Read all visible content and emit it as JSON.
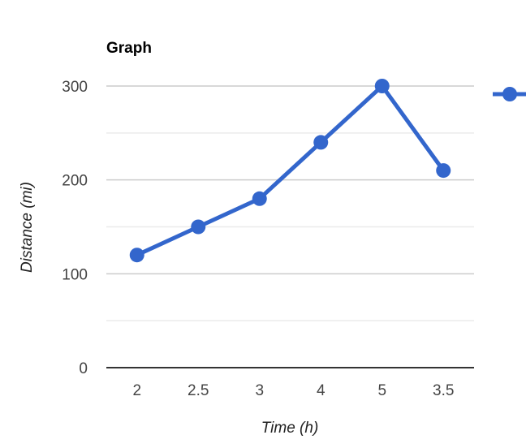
{
  "chart_data": {
    "type": "line",
    "title": "Graph",
    "xlabel": "Time (h)",
    "ylabel": "Distance (mi)",
    "categories": [
      "2",
      "2.5",
      "3",
      "4",
      "5",
      "3.5"
    ],
    "series": [
      {
        "values": [
          120,
          150,
          180,
          240,
          300,
          210
        ]
      }
    ],
    "ylim": [
      0,
      300
    ],
    "yticks": [
      "0",
      "100",
      "200",
      "300"
    ],
    "grid": true,
    "legend": "right",
    "color": "#3366cc"
  }
}
